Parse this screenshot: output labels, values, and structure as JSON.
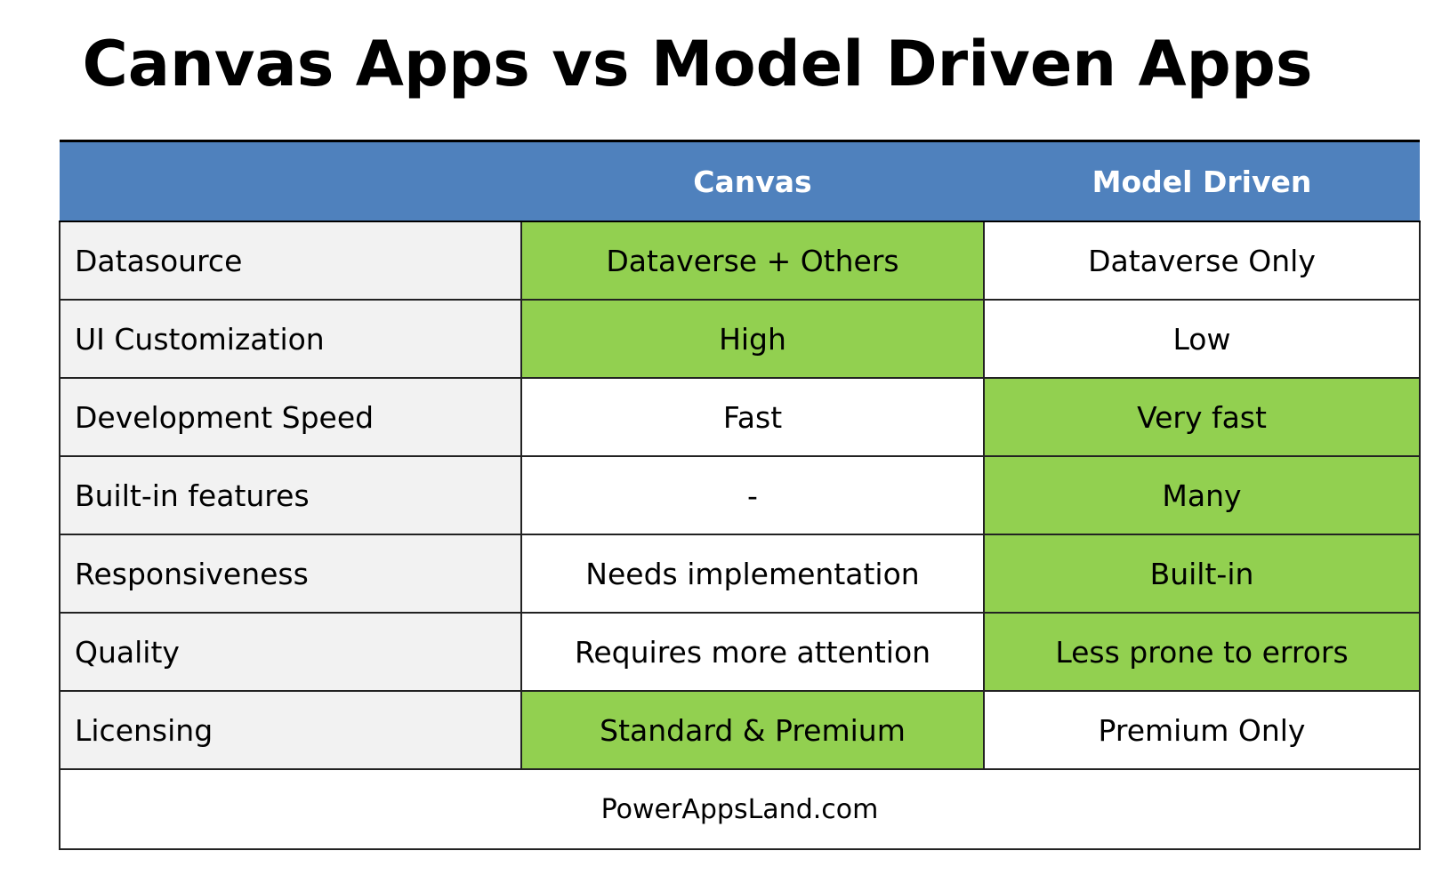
{
  "title": "Canvas Apps vs Model Driven Apps",
  "columns": [
    "",
    "Canvas",
    "Model Driven"
  ],
  "rows": [
    {
      "label": "Datasource",
      "canvas": "Dataverse + Others",
      "model": "Dataverse Only",
      "highlight": "canvas"
    },
    {
      "label": "UI Customization",
      "canvas": "High",
      "model": "Low",
      "highlight": "canvas"
    },
    {
      "label": "Development Speed",
      "canvas": "Fast",
      "model": "Very fast",
      "highlight": "model"
    },
    {
      "label": "Built-in features",
      "canvas": "-",
      "model": "Many",
      "highlight": "model"
    },
    {
      "label": "Responsiveness",
      "canvas": "Needs implementation",
      "model": "Built-in",
      "highlight": "model"
    },
    {
      "label": "Quality",
      "canvas": "Requires more attention",
      "model": "Less prone to errors",
      "highlight": "model"
    },
    {
      "label": "Licensing",
      "canvas": "Standard & Premium",
      "model": "Premium Only",
      "highlight": "canvas"
    }
  ],
  "footer": "PowerAppsLand.com",
  "colors": {
    "header": "#4f81bd",
    "highlight": "#92d050",
    "label_bg": "#f2f2f2"
  }
}
